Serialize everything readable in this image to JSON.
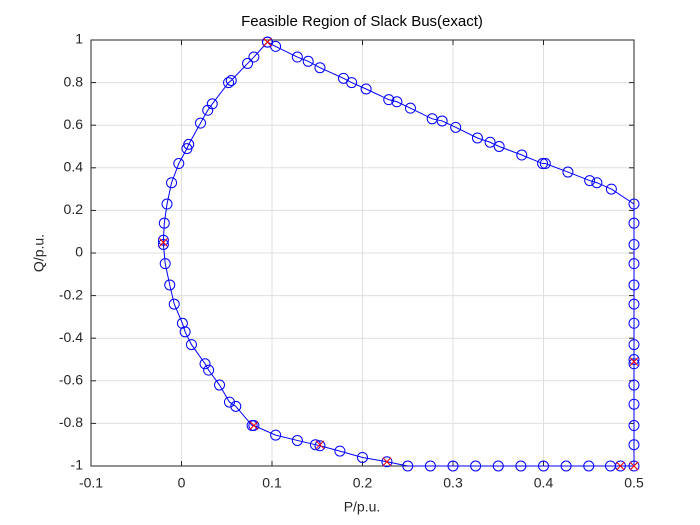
{
  "chart_data": {
    "type": "line",
    "title": "Feasible Region of Slack Bus(exact)",
    "x_label": "P/p.u.",
    "y_label": "Q/p.u.",
    "xlim": [
      -0.1,
      0.5
    ],
    "ylim": [
      -1,
      1
    ],
    "xticks": [
      -0.1,
      0,
      0.1,
      0.2,
      0.3,
      0.4,
      0.5
    ],
    "yticks": [
      -1,
      -0.8,
      -0.6,
      -0.4,
      -0.2,
      0,
      0.2,
      0.4,
      0.6,
      0.8,
      1
    ],
    "grid": true,
    "series": [
      {
        "color": "#0000ff",
        "marker": "o",
        "line": true,
        "x": [
          0.095,
          0.104,
          0.128,
          0.14,
          0.153,
          0.179,
          0.188,
          0.204,
          0.229,
          0.238,
          0.253,
          0.277,
          0.288,
          0.303,
          0.327,
          0.341,
          0.351,
          0.376,
          0.399,
          0.402,
          0.427,
          0.451,
          0.459,
          0.475,
          0.5,
          0.5,
          0.5,
          0.5,
          0.5,
          0.5,
          0.5,
          0.5,
          0.5,
          0.5,
          0.5,
          0.5,
          0.5,
          0.5,
          0.5,
          0.485,
          0.474,
          0.45,
          0.425,
          0.4,
          0.375,
          0.35,
          0.325,
          0.3,
          0.275,
          0.25,
          0.227,
          0.2,
          0.175,
          0.153,
          0.148,
          0.128,
          0.104,
          0.08,
          0.078,
          0.06,
          0.053,
          0.042,
          0.03,
          0.026,
          0.011,
          0.004,
          0.001,
          -0.008,
          -0.013,
          -0.018,
          -0.02,
          -0.02,
          -0.019,
          -0.016,
          -0.011,
          -0.003,
          0.006,
          0.008,
          0.021,
          0.029,
          0.034,
          0.052,
          0.055,
          0.073,
          0.08,
          0.095
        ],
        "y": [
          0.99,
          0.97,
          0.92,
          0.9,
          0.87,
          0.82,
          0.8,
          0.77,
          0.72,
          0.71,
          0.68,
          0.63,
          0.62,
          0.59,
          0.54,
          0.52,
          0.5,
          0.46,
          0.42,
          0.42,
          0.38,
          0.34,
          0.33,
          0.3,
          0.23,
          0.14,
          0.04,
          -0.05,
          -0.15,
          -0.24,
          -0.33,
          -0.43,
          -0.5,
          -0.52,
          -0.62,
          -0.71,
          -0.81,
          -0.9,
          -1,
          -1,
          -1,
          -1,
          -1,
          -1,
          -1,
          -1,
          -1,
          -1,
          -1,
          -1,
          -0.98,
          -0.96,
          -0.93,
          -0.905,
          -0.9,
          -0.88,
          -0.855,
          -0.81,
          -0.81,
          -0.72,
          -0.7,
          -0.62,
          -0.55,
          -0.52,
          -0.43,
          -0.37,
          -0.33,
          -0.24,
          -0.15,
          -0.05,
          0.04,
          0.06,
          0.14,
          0.23,
          0.33,
          0.42,
          0.49,
          0.51,
          0.61,
          0.67,
          0.7,
          0.8,
          0.81,
          0.89,
          0.92,
          0.99
        ]
      },
      {
        "color": "#ff0000",
        "marker": "x",
        "line": false,
        "x": [
          0.095,
          0.5,
          0.5,
          0.485,
          0.153,
          0.227,
          0.08,
          -0.02
        ],
        "y": [
          0.99,
          -0.51,
          -1,
          -1,
          -0.9,
          -0.98,
          -0.81,
          0.05
        ]
      }
    ]
  }
}
